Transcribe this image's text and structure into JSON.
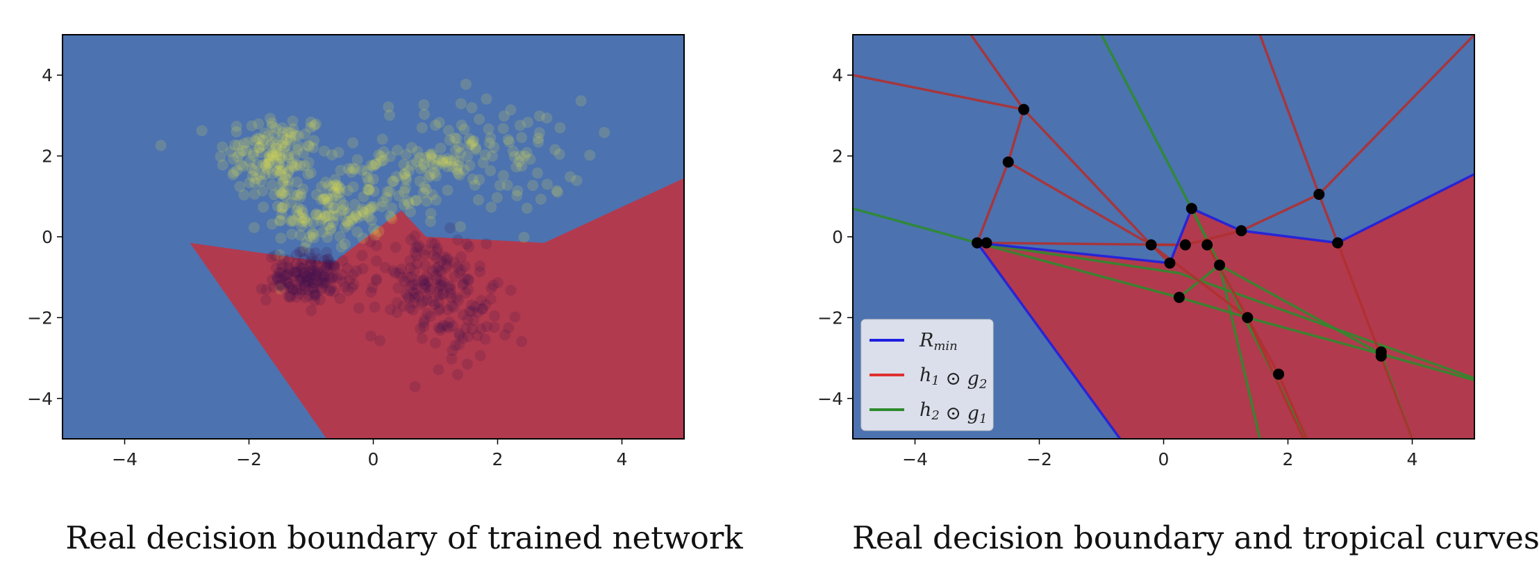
{
  "chart_data": [
    {
      "type": "scatter",
      "title": "",
      "caption": "Real decision boundary of trained network",
      "xlabel": "",
      "ylabel": "",
      "xlim": [
        -5,
        5
      ],
      "ylim": [
        -5,
        5
      ],
      "xticks": [
        -4,
        -2,
        0,
        2,
        4
      ],
      "yticks": [
        -4,
        -2,
        0,
        2,
        4
      ],
      "xtick_labels": [
        "−4",
        "−2",
        "0",
        "2",
        "4"
      ],
      "ytick_labels": [
        "−4",
        "−2",
        "0",
        "2",
        "4"
      ],
      "grid": false,
      "colors": {
        "background_region": "#4c72b0",
        "positive_region": "#b23a4e",
        "points_a": "#e6e64a",
        "points_b": "#3b0f50"
      },
      "regions": [
        {
          "name": "",
          "color": "#b23a4e",
          "polygon": [
            [
              -2.95,
              -0.15
            ],
            [
              -0.65,
              -0.65
            ],
            [
              0.45,
              0.65
            ],
            [
              0.85,
              0.0
            ],
            [
              2.75,
              -0.15
            ],
            [
              5,
              1.45
            ],
            [
              5,
              -5
            ],
            [
              -0.75,
              -5
            ]
          ]
        }
      ],
      "series": [
        {
          "color": "#e6e64a",
          "clusters": [
            {
              "cx": -1.6,
              "cy": 2.0,
              "sx": 0.45,
              "sy": 0.55,
              "n": 140
            },
            {
              "cx": -0.8,
              "cy": 0.6,
              "sx": 0.45,
              "sy": 0.45,
              "n": 120
            },
            {
              "cx": 1.6,
              "cy": 2.0,
              "sx": 0.9,
              "sy": 0.7,
              "n": 130
            },
            {
              "cx": 0.5,
              "cy": 1.3,
              "sx": 0.5,
              "sy": 0.5,
              "n": 60
            }
          ]
        },
        {
          "color": "#3b0f50",
          "clusters": [
            {
              "cx": -1.0,
              "cy": -1.0,
              "sx": 0.35,
              "sy": 0.3,
              "n": 160
            },
            {
              "cx": 0.9,
              "cy": -1.2,
              "sx": 0.45,
              "sy": 0.65,
              "n": 150
            },
            {
              "cx": 1.6,
              "cy": -2.3,
              "sx": 0.35,
              "sy": 0.45,
              "n": 40
            }
          ]
        }
      ]
    },
    {
      "type": "line",
      "title": "",
      "caption": "Real decision boundary and tropical curves",
      "xlabel": "",
      "ylabel": "",
      "xlim": [
        -5,
        5
      ],
      "ylim": [
        -5,
        5
      ],
      "xticks": [
        -4,
        -2,
        0,
        2,
        4
      ],
      "yticks": [
        -4,
        -2,
        0,
        2,
        4
      ],
      "xtick_labels": [
        "−4",
        "−2",
        "0",
        "2",
        "4"
      ],
      "ytick_labels": [
        "−4",
        "−2",
        "0",
        "2",
        "4"
      ],
      "grid": false,
      "legend_position": "lower-left",
      "colors": {
        "background_region": "#4c72b0",
        "positive_region": "#b23a4e"
      },
      "regions": [
        {
          "name": "",
          "color": "#b23a4e",
          "polygon": [
            [
              -3.0,
              -0.15
            ],
            [
              0.1,
              -0.65
            ],
            [
              0.45,
              0.7
            ],
            [
              1.25,
              0.15
            ],
            [
              2.8,
              -0.15
            ],
            [
              5,
              1.55
            ],
            [
              5,
              -5
            ],
            [
              -0.7,
              -5
            ]
          ]
        }
      ],
      "legend": [
        {
          "label_main": "R",
          "label_sub": "min",
          "color": "#1f1fe0"
        },
        {
          "label_main": "h",
          "label_sub": "1",
          "op": " ⊙ ",
          "label_main2": "g",
          "label_sub2": "2",
          "color": "#e03030"
        },
        {
          "label_main": "h",
          "label_sub": "2",
          "op": " ⊙ ",
          "label_main2": "g",
          "label_sub2": "1",
          "color": "#2e8b2e"
        }
      ],
      "series": [
        {
          "name": "R_min",
          "color": "#1f1fe0",
          "lines": [
            [
              [
                -3.0,
                -0.15
              ],
              [
                0.1,
                -0.65
              ],
              [
                0.45,
                0.7
              ],
              [
                1.25,
                0.15
              ],
              [
                2.8,
                -0.15
              ],
              [
                5,
                1.55
              ]
            ],
            [
              [
                -3.0,
                -0.15
              ],
              [
                -0.7,
                -5
              ]
            ]
          ]
        },
        {
          "name": "h1 ⊙ g2",
          "color": "#b03030",
          "lines": [
            [
              [
                -3.1,
                5.0
              ],
              [
                -2.25,
                3.15
              ],
              [
                -2.5,
                1.85
              ],
              [
                -3.0,
                -0.15
              ]
            ],
            [
              [
                -5.0,
                4.0
              ],
              [
                -2.25,
                3.15
              ],
              [
                -0.2,
                -0.2
              ]
            ],
            [
              [
                -2.5,
                1.85
              ],
              [
                -0.2,
                -0.2
              ],
              [
                0.1,
                -0.65
              ]
            ],
            [
              [
                -0.2,
                -0.2
              ],
              [
                0.35,
                -0.2
              ],
              [
                1.25,
                0.15
              ],
              [
                2.5,
                1.05
              ],
              [
                5.0,
                5.0
              ]
            ],
            [
              [
                1.55,
                5.0
              ],
              [
                2.5,
                1.05
              ],
              [
                2.8,
                -0.15
              ],
              [
                4.0,
                -5.0
              ]
            ],
            [
              [
                0.35,
                -0.2
              ],
              [
                -3.0,
                -0.15
              ]
            ],
            [
              [
                0.7,
                -0.2
              ],
              [
                1.35,
                -2.0
              ],
              [
                1.85,
                -3.4
              ],
              [
                2.3,
                -5.0
              ]
            ],
            [
              [
                -0.2,
                -0.2
              ],
              [
                1.35,
                -2.0
              ],
              [
                2.25,
                -5.0
              ]
            ]
          ]
        },
        {
          "name": "h2 ⊙ g1",
          "color": "#2e8b2e",
          "lines": [
            [
              [
                -5.0,
                0.7
              ],
              [
                -3.0,
                -0.15
              ],
              [
                0.25,
                -0.9
              ],
              [
                5.0,
                -3.5
              ]
            ],
            [
              [
                -3.0,
                -0.15
              ],
              [
                0.25,
                -1.5
              ],
              [
                1.35,
                -2.0
              ],
              [
                3.5,
                -2.9
              ],
              [
                5.0,
                -3.55
              ]
            ],
            [
              [
                -1.0,
                5.0
              ],
              [
                0.45,
                0.7
              ],
              [
                0.9,
                -0.7
              ],
              [
                1.55,
                -5.0
              ]
            ],
            [
              [
                0.45,
                0.7
              ],
              [
                0.9,
                -0.7
              ],
              [
                1.3,
                -2.0
              ],
              [
                2.3,
                -5.0
              ]
            ],
            [
              [
                0.25,
                -1.5
              ],
              [
                0.9,
                -0.7
              ],
              [
                3.5,
                -2.9
              ],
              [
                4.0,
                -5.0
              ]
            ]
          ]
        }
      ],
      "vertices": [
        [
          -2.25,
          3.15
        ],
        [
          -2.5,
          1.85
        ],
        [
          -3.0,
          -0.15
        ],
        [
          -2.85,
          -0.15
        ],
        [
          -0.2,
          -0.2
        ],
        [
          0.1,
          -0.65
        ],
        [
          0.35,
          -0.2
        ],
        [
          0.45,
          0.7
        ],
        [
          0.7,
          -0.2
        ],
        [
          0.9,
          -0.7
        ],
        [
          1.25,
          0.15
        ],
        [
          2.5,
          1.05
        ],
        [
          2.8,
          -0.15
        ],
        [
          0.25,
          -1.5
        ],
        [
          1.35,
          -2.0
        ],
        [
          1.85,
          -3.4
        ],
        [
          3.5,
          -2.85
        ],
        [
          3.5,
          -2.95
        ]
      ]
    }
  ]
}
